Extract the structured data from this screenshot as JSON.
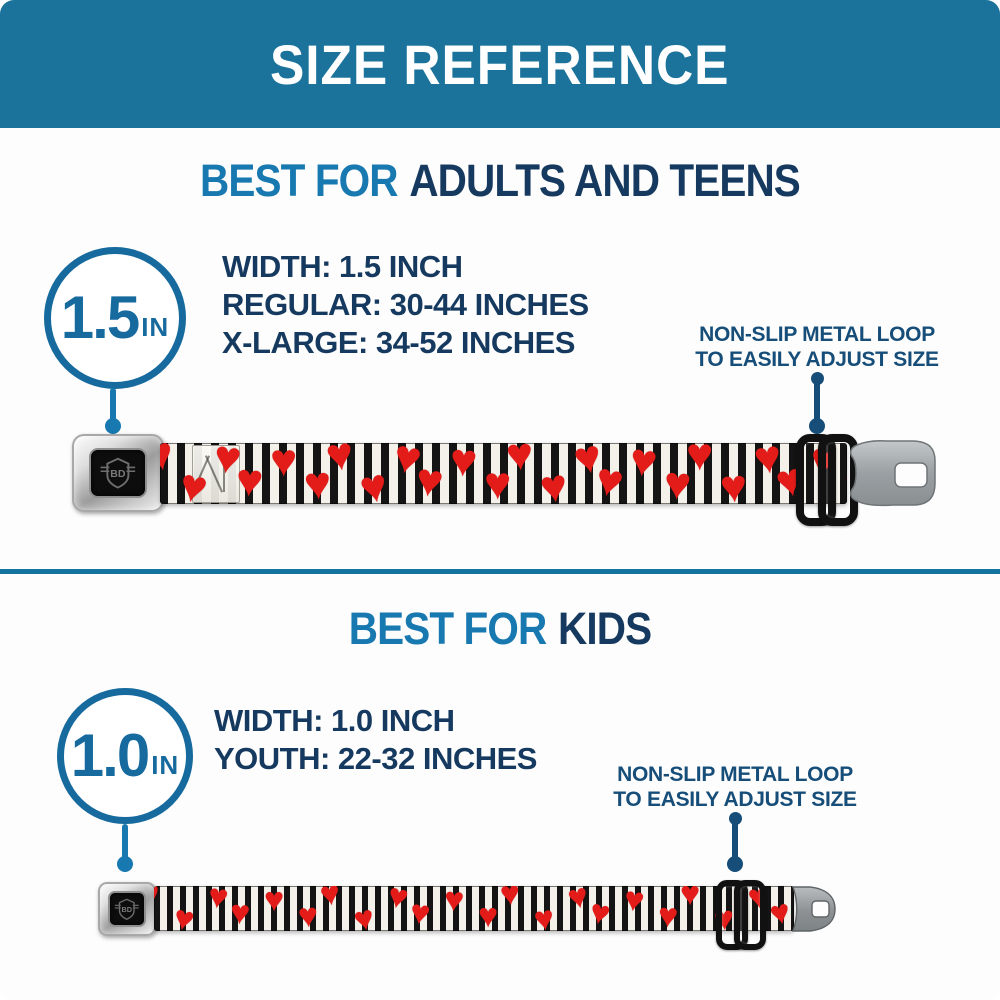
{
  "banner": {
    "title": "SIZE REFERENCE"
  },
  "colors": {
    "banner_bg": "#1b739c",
    "heading_bright_blue": "#1878b0",
    "heading_dark_navy": "#163a5f",
    "callout_navy": "#164e79",
    "circle_stroke_blue": "#166a9e",
    "divider_blue": "#1573a0",
    "heart_red": "#e31c19"
  },
  "belt": {
    "buckle_logo": "BD"
  },
  "sections": [
    {
      "id": "adults",
      "heading_prefix": "BEST FOR",
      "heading_rest": "ADULTS AND TEENS",
      "badge": {
        "value": "1.5",
        "unit": "IN"
      },
      "specs": [
        "WIDTH: 1.5 INCH",
        "REGULAR: 30-44 INCHES",
        "X-LARGE: 34-52 INCHES"
      ],
      "callout_line1": "NON-SLIP METAL LOOP",
      "callout_line2": "TO EASILY ADJUST SIZE"
    },
    {
      "id": "kids",
      "heading_prefix": "BEST FOR",
      "heading_rest": "KIDS",
      "badge": {
        "value": "1.0",
        "unit": "IN"
      },
      "specs": [
        "WIDTH: 1.0 INCH",
        "YOUTH: 22-32 INCHES"
      ],
      "callout_line1": "NON-SLIP METAL LOOP",
      "callout_line2": "TO EASILY ADJUST SIZE"
    }
  ]
}
